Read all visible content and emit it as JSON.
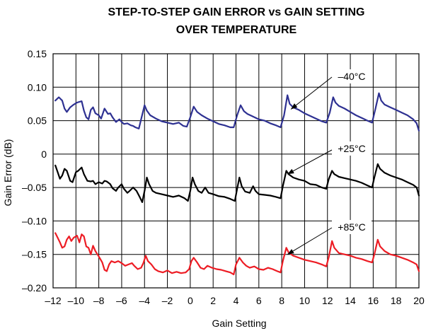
{
  "chart_data": {
    "type": "line",
    "title_line1": "STEP-TO-STEP GAIN ERROR vs GAIN SETTING",
    "title_line2": "OVER TEMPERATURE",
    "xlabel": "Gain Setting",
    "ylabel": "Gain Error (dB)",
    "xlim": [
      -12,
      20
    ],
    "ylim": [
      -0.2,
      0.15
    ],
    "grid": true,
    "x_ticks": [
      -12,
      -10,
      -8,
      -6,
      -4,
      -2,
      0,
      2,
      4,
      6,
      8,
      10,
      12,
      14,
      16,
      18,
      20
    ],
    "x_tick_labels": [
      "–12",
      "–10",
      "–8",
      "–6",
      "–4",
      "–2",
      "0",
      "2",
      "4",
      "6",
      "8",
      "10",
      "12",
      "14",
      "16",
      "18",
      "20"
    ],
    "y_ticks": [
      0.15,
      0.1,
      0.05,
      0,
      -0.05,
      -0.1,
      -0.15,
      -0.2
    ],
    "y_tick_labels": [
      "0.15",
      "0.10",
      "0.05",
      "0",
      "–0.05",
      "–0.10",
      "–0.15",
      "–0.20"
    ],
    "series": [
      {
        "name": "–40°C",
        "color": "#2e3192",
        "points": [
          [
            -11.8,
            0.08
          ],
          [
            -11.5,
            0.085
          ],
          [
            -11.2,
            0.08
          ],
          [
            -11.0,
            0.068
          ],
          [
            -10.8,
            0.063
          ],
          [
            -10.5,
            0.07
          ],
          [
            -10.2,
            0.074
          ],
          [
            -9.9,
            0.077
          ],
          [
            -9.5,
            0.079
          ],
          [
            -9.3,
            0.065
          ],
          [
            -9.1,
            0.055
          ],
          [
            -8.9,
            0.052
          ],
          [
            -8.7,
            0.066
          ],
          [
            -8.5,
            0.07
          ],
          [
            -8.3,
            0.061
          ],
          [
            -8.0,
            0.058
          ],
          [
            -7.8,
            0.053
          ],
          [
            -7.5,
            0.068
          ],
          [
            -7.2,
            0.06
          ],
          [
            -7.0,
            0.061
          ],
          [
            -6.8,
            0.055
          ],
          [
            -6.5,
            0.048
          ],
          [
            -6.2,
            0.052
          ],
          [
            -6.0,
            0.048
          ],
          [
            -5.8,
            0.045
          ],
          [
            -5.5,
            0.046
          ],
          [
            -5.2,
            0.043
          ],
          [
            -5.0,
            0.042
          ],
          [
            -4.8,
            0.04
          ],
          [
            -4.5,
            0.038
          ],
          [
            -4.3,
            0.052
          ],
          [
            -4.0,
            0.073
          ],
          [
            -3.8,
            0.065
          ],
          [
            -3.5,
            0.058
          ],
          [
            -3.0,
            0.053
          ],
          [
            -2.5,
            0.049
          ],
          [
            -2.0,
            0.047
          ],
          [
            -1.5,
            0.045
          ],
          [
            -1.0,
            0.047
          ],
          [
            -0.6,
            0.042
          ],
          [
            -0.3,
            0.041
          ],
          [
            0,
            0.055
          ],
          [
            0.3,
            0.071
          ],
          [
            0.6,
            0.063
          ],
          [
            1,
            0.058
          ],
          [
            1.5,
            0.053
          ],
          [
            2,
            0.049
          ],
          [
            2.5,
            0.045
          ],
          [
            3,
            0.043
          ],
          [
            3.5,
            0.04
          ],
          [
            3.8,
            0.04
          ],
          [
            4.1,
            0.058
          ],
          [
            4.4,
            0.073
          ],
          [
            4.7,
            0.064
          ],
          [
            5,
            0.06
          ],
          [
            5.5,
            0.056
          ],
          [
            6,
            0.052
          ],
          [
            6.5,
            0.05
          ],
          [
            7,
            0.046
          ],
          [
            7.5,
            0.043
          ],
          [
            7.9,
            0.04
          ],
          [
            8.2,
            0.058
          ],
          [
            8.5,
            0.088
          ],
          [
            8.7,
            0.075
          ],
          [
            9,
            0.07
          ],
          [
            9.5,
            0.066
          ],
          [
            10,
            0.061
          ],
          [
            10.5,
            0.057
          ],
          [
            11,
            0.053
          ],
          [
            11.5,
            0.049
          ],
          [
            11.9,
            0.047
          ],
          [
            12.2,
            0.062
          ],
          [
            12.5,
            0.085
          ],
          [
            12.7,
            0.077
          ],
          [
            13,
            0.072
          ],
          [
            13.5,
            0.068
          ],
          [
            14,
            0.063
          ],
          [
            14.5,
            0.058
          ],
          [
            15,
            0.054
          ],
          [
            15.5,
            0.05
          ],
          [
            15.9,
            0.047
          ],
          [
            16.2,
            0.068
          ],
          [
            16.5,
            0.091
          ],
          [
            16.7,
            0.08
          ],
          [
            17,
            0.074
          ],
          [
            17.5,
            0.07
          ],
          [
            18,
            0.066
          ],
          [
            18.5,
            0.062
          ],
          [
            19,
            0.058
          ],
          [
            19.5,
            0.052
          ],
          [
            19.8,
            0.046
          ],
          [
            20,
            0.035
          ]
        ]
      },
      {
        "name": "+25°C",
        "color": "#000000",
        "points": [
          [
            -11.8,
            -0.017
          ],
          [
            -11.6,
            -0.027
          ],
          [
            -11.4,
            -0.037
          ],
          [
            -11.2,
            -0.032
          ],
          [
            -11.0,
            -0.022
          ],
          [
            -10.8,
            -0.025
          ],
          [
            -10.5,
            -0.04
          ],
          [
            -10.3,
            -0.042
          ],
          [
            -10.0,
            -0.027
          ],
          [
            -9.8,
            -0.025
          ],
          [
            -9.5,
            -0.02
          ],
          [
            -9.3,
            -0.03
          ],
          [
            -9.0,
            -0.04
          ],
          [
            -8.7,
            -0.041
          ],
          [
            -8.5,
            -0.04
          ],
          [
            -8.3,
            -0.045
          ],
          [
            -8.0,
            -0.042
          ],
          [
            -7.7,
            -0.044
          ],
          [
            -7.5,
            -0.04
          ],
          [
            -7.3,
            -0.041
          ],
          [
            -7.0,
            -0.045
          ],
          [
            -6.8,
            -0.051
          ],
          [
            -6.5,
            -0.055
          ],
          [
            -6.3,
            -0.05
          ],
          [
            -6.0,
            -0.045
          ],
          [
            -5.8,
            -0.052
          ],
          [
            -5.5,
            -0.058
          ],
          [
            -5.3,
            -0.055
          ],
          [
            -5.0,
            -0.05
          ],
          [
            -4.7,
            -0.055
          ],
          [
            -4.4,
            -0.065
          ],
          [
            -4.2,
            -0.072
          ],
          [
            -4.0,
            -0.055
          ],
          [
            -3.8,
            -0.035
          ],
          [
            -3.6,
            -0.045
          ],
          [
            -3.3,
            -0.055
          ],
          [
            -3.0,
            -0.058
          ],
          [
            -2.5,
            -0.06
          ],
          [
            -2.0,
            -0.062
          ],
          [
            -1.5,
            -0.064
          ],
          [
            -1.0,
            -0.062
          ],
          [
            -0.5,
            -0.066
          ],
          [
            -0.2,
            -0.07
          ],
          [
            0,
            -0.055
          ],
          [
            0.2,
            -0.035
          ],
          [
            0.4,
            -0.045
          ],
          [
            0.7,
            -0.055
          ],
          [
            1.0,
            -0.058
          ],
          [
            1.3,
            -0.05
          ],
          [
            1.6,
            -0.058
          ],
          [
            2.0,
            -0.06
          ],
          [
            2.5,
            -0.063
          ],
          [
            3.0,
            -0.064
          ],
          [
            3.5,
            -0.067
          ],
          [
            3.9,
            -0.07
          ],
          [
            4.1,
            -0.052
          ],
          [
            4.3,
            -0.035
          ],
          [
            4.5,
            -0.048
          ],
          [
            4.8,
            -0.056
          ],
          [
            5.2,
            -0.058
          ],
          [
            5.5,
            -0.048
          ],
          [
            5.7,
            -0.055
          ],
          [
            6.0,
            -0.06
          ],
          [
            6.5,
            -0.061
          ],
          [
            7.0,
            -0.062
          ],
          [
            7.5,
            -0.064
          ],
          [
            7.9,
            -0.066
          ],
          [
            8.1,
            -0.048
          ],
          [
            8.4,
            -0.025
          ],
          [
            8.6,
            -0.03
          ],
          [
            9.0,
            -0.035
          ],
          [
            9.5,
            -0.038
          ],
          [
            10.0,
            -0.04
          ],
          [
            10.5,
            -0.045
          ],
          [
            11.0,
            -0.046
          ],
          [
            11.5,
            -0.05
          ],
          [
            11.9,
            -0.052
          ],
          [
            12.1,
            -0.038
          ],
          [
            12.4,
            -0.025
          ],
          [
            12.6,
            -0.03
          ],
          [
            13.0,
            -0.034
          ],
          [
            13.5,
            -0.036
          ],
          [
            14.0,
            -0.038
          ],
          [
            14.5,
            -0.04
          ],
          [
            15.0,
            -0.043
          ],
          [
            15.5,
            -0.047
          ],
          [
            15.9,
            -0.05
          ],
          [
            16.1,
            -0.035
          ],
          [
            16.4,
            -0.015
          ],
          [
            16.6,
            -0.022
          ],
          [
            17.0,
            -0.028
          ],
          [
            17.5,
            -0.032
          ],
          [
            18.0,
            -0.035
          ],
          [
            18.5,
            -0.038
          ],
          [
            19.0,
            -0.042
          ],
          [
            19.5,
            -0.046
          ],
          [
            19.8,
            -0.05
          ],
          [
            20.0,
            -0.062
          ]
        ]
      },
      {
        "name": "+85°C",
        "color": "#ed1c24",
        "points": [
          [
            -11.8,
            -0.118
          ],
          [
            -11.6,
            -0.125
          ],
          [
            -11.4,
            -0.132
          ],
          [
            -11.2,
            -0.14
          ],
          [
            -11.0,
            -0.138
          ],
          [
            -10.8,
            -0.128
          ],
          [
            -10.6,
            -0.123
          ],
          [
            -10.4,
            -0.13
          ],
          [
            -10.2,
            -0.125
          ],
          [
            -9.9,
            -0.122
          ],
          [
            -9.7,
            -0.132
          ],
          [
            -9.5,
            -0.12
          ],
          [
            -9.3,
            -0.123
          ],
          [
            -9.1,
            -0.138
          ],
          [
            -8.9,
            -0.14
          ],
          [
            -8.7,
            -0.15
          ],
          [
            -8.5,
            -0.137
          ],
          [
            -8.3,
            -0.145
          ],
          [
            -8.0,
            -0.153
          ],
          [
            -7.7,
            -0.162
          ],
          [
            -7.5,
            -0.173
          ],
          [
            -7.3,
            -0.175
          ],
          [
            -7.1,
            -0.165
          ],
          [
            -6.9,
            -0.16
          ],
          [
            -6.6,
            -0.162
          ],
          [
            -6.3,
            -0.16
          ],
          [
            -6.0,
            -0.163
          ],
          [
            -5.7,
            -0.167
          ],
          [
            -5.4,
            -0.165
          ],
          [
            -5.1,
            -0.163
          ],
          [
            -4.9,
            -0.167
          ],
          [
            -4.6,
            -0.172
          ],
          [
            -4.3,
            -0.17
          ],
          [
            -4.1,
            -0.163
          ],
          [
            -3.9,
            -0.152
          ],
          [
            -3.7,
            -0.16
          ],
          [
            -3.4,
            -0.165
          ],
          [
            -3.1,
            -0.172
          ],
          [
            -2.8,
            -0.175
          ],
          [
            -2.4,
            -0.177
          ],
          [
            -2.0,
            -0.174
          ],
          [
            -1.6,
            -0.178
          ],
          [
            -1.2,
            -0.176
          ],
          [
            -0.8,
            -0.178
          ],
          [
            -0.4,
            -0.177
          ],
          [
            -0.1,
            -0.172
          ],
          [
            0.1,
            -0.16
          ],
          [
            0.3,
            -0.155
          ],
          [
            0.6,
            -0.162
          ],
          [
            0.9,
            -0.17
          ],
          [
            1.2,
            -0.172
          ],
          [
            1.5,
            -0.167
          ],
          [
            1.9,
            -0.17
          ],
          [
            2.3,
            -0.172
          ],
          [
            2.7,
            -0.173
          ],
          [
            3.1,
            -0.175
          ],
          [
            3.5,
            -0.177
          ],
          [
            3.8,
            -0.18
          ],
          [
            4.0,
            -0.165
          ],
          [
            4.3,
            -0.155
          ],
          [
            4.6,
            -0.162
          ],
          [
            4.9,
            -0.167
          ],
          [
            5.2,
            -0.17
          ],
          [
            5.6,
            -0.168
          ],
          [
            6.0,
            -0.172
          ],
          [
            6.4,
            -0.173
          ],
          [
            6.8,
            -0.17
          ],
          [
            7.2,
            -0.172
          ],
          [
            7.6,
            -0.175
          ],
          [
            7.9,
            -0.177
          ],
          [
            8.1,
            -0.16
          ],
          [
            8.4,
            -0.14
          ],
          [
            8.6,
            -0.147
          ],
          [
            9.0,
            -0.152
          ],
          [
            9.5,
            -0.155
          ],
          [
            10.0,
            -0.158
          ],
          [
            10.5,
            -0.16
          ],
          [
            11.0,
            -0.162
          ],
          [
            11.5,
            -0.165
          ],
          [
            11.9,
            -0.168
          ],
          [
            12.1,
            -0.155
          ],
          [
            12.4,
            -0.13
          ],
          [
            12.6,
            -0.14
          ],
          [
            13.0,
            -0.148
          ],
          [
            13.5,
            -0.15
          ],
          [
            14.0,
            -0.152
          ],
          [
            14.5,
            -0.155
          ],
          [
            15.0,
            -0.157
          ],
          [
            15.5,
            -0.16
          ],
          [
            15.9,
            -0.162
          ],
          [
            16.1,
            -0.15
          ],
          [
            16.4,
            -0.128
          ],
          [
            16.6,
            -0.138
          ],
          [
            17.0,
            -0.145
          ],
          [
            17.5,
            -0.15
          ],
          [
            18.0,
            -0.152
          ],
          [
            18.5,
            -0.155
          ],
          [
            19.0,
            -0.158
          ],
          [
            19.5,
            -0.162
          ],
          [
            19.8,
            -0.165
          ],
          [
            20.0,
            -0.175
          ]
        ]
      }
    ],
    "annotations": [
      {
        "label": "–40°C",
        "series": 0,
        "target": [
          8.8,
          0.067
        ]
      },
      {
        "label": "+25°C",
        "series": 1,
        "target": [
          8.5,
          -0.03
        ]
      },
      {
        "label": "+85°C",
        "series": 2,
        "target": [
          8.5,
          -0.15
        ]
      }
    ]
  }
}
